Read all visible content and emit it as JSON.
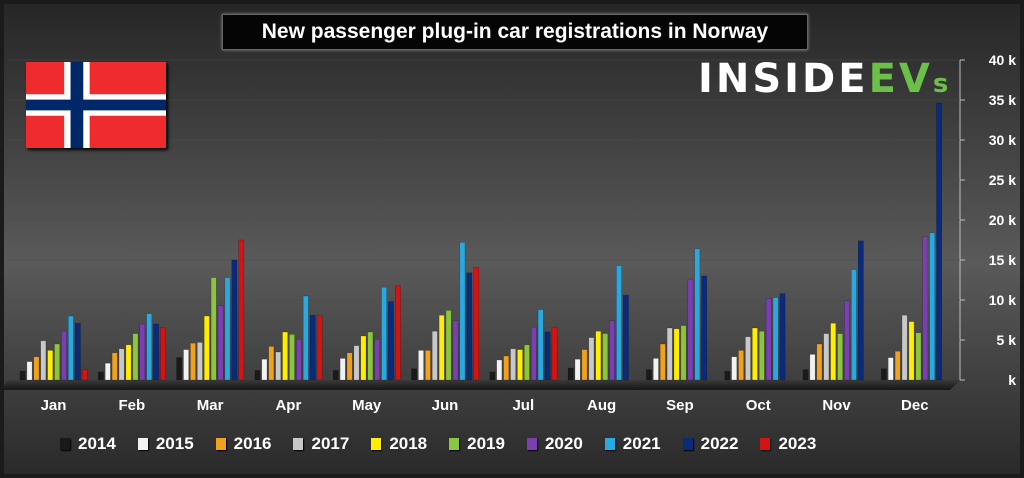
{
  "title": "New passenger plug-in car registrations in Norway",
  "logo": {
    "main": "INSIDE",
    "ev": "EV",
    "s": "s"
  },
  "colors": {
    "2014": "#1a1a1a",
    "2015": "#f2f2f2",
    "2016": "#f0a21e",
    "2017": "#c8c8c8",
    "2018": "#ffee00",
    "2019": "#8cc63f",
    "2020": "#7a3fb0",
    "2021": "#2aa8e0",
    "2022": "#0b2a7a",
    "2023": "#d41313"
  },
  "chart_data": {
    "type": "bar",
    "title": "New passenger plug-in car registrations in Norway",
    "categories": [
      "Jan",
      "Feb",
      "Mar",
      "Apr",
      "May",
      "Jun",
      "Jul",
      "Aug",
      "Sep",
      "Oct",
      "Nov",
      "Dec"
    ],
    "ylim": [
      0,
      40000
    ],
    "yticks": [
      "k",
      "5 k",
      "10 k",
      "15 k",
      "20 k",
      "25 k",
      "30 k",
      "35 k",
      "40 k"
    ],
    "y_axis_side": "right",
    "legend_placement": "bottom",
    "series": [
      {
        "name": "2014",
        "values": [
          1100,
          1000,
          2800,
          1200,
          1200,
          1400,
          1000,
          1500,
          1300,
          1100,
          1300,
          1400
        ]
      },
      {
        "name": "2015",
        "values": [
          2300,
          2100,
          3800,
          2600,
          2700,
          3700,
          2500,
          2600,
          2700,
          2900,
          3200,
          2800
        ]
      },
      {
        "name": "2016",
        "values": [
          2900,
          3400,
          4600,
          4200,
          3400,
          3700,
          3000,
          3800,
          4500,
          3700,
          4500,
          3600
        ]
      },
      {
        "name": "2017",
        "values": [
          4900,
          3900,
          4700,
          3500,
          4300,
          6100,
          3900,
          5300,
          6500,
          5400,
          5800,
          8100
        ]
      },
      {
        "name": "2018",
        "values": [
          3700,
          4400,
          8000,
          6000,
          5500,
          8100,
          3800,
          6100,
          6400,
          6500,
          7100,
          7300
        ]
      },
      {
        "name": "2019",
        "values": [
          4500,
          5800,
          12800,
          5700,
          6000,
          8700,
          4400,
          5800,
          6800,
          6100,
          5800,
          5900
        ]
      },
      {
        "name": "2020",
        "values": [
          6100,
          7000,
          9300,
          5100,
          5100,
          7400,
          6600,
          7400,
          12600,
          10200,
          9900,
          17900
        ]
      },
      {
        "name": "2021",
        "values": [
          8000,
          8300,
          12800,
          10500,
          11600,
          17200,
          8800,
          14300,
          16400,
          10300,
          13800,
          18400
        ]
      },
      {
        "name": "2022",
        "values": [
          7100,
          7000,
          15000,
          8100,
          9800,
          13400,
          6000,
          10600,
          13000,
          10800,
          17400,
          34600
        ]
      },
      {
        "name": "2023",
        "values": [
          1300,
          6600,
          17500,
          8100,
          11800,
          14100,
          6600,
          null,
          null,
          null,
          null,
          null
        ]
      }
    ]
  }
}
